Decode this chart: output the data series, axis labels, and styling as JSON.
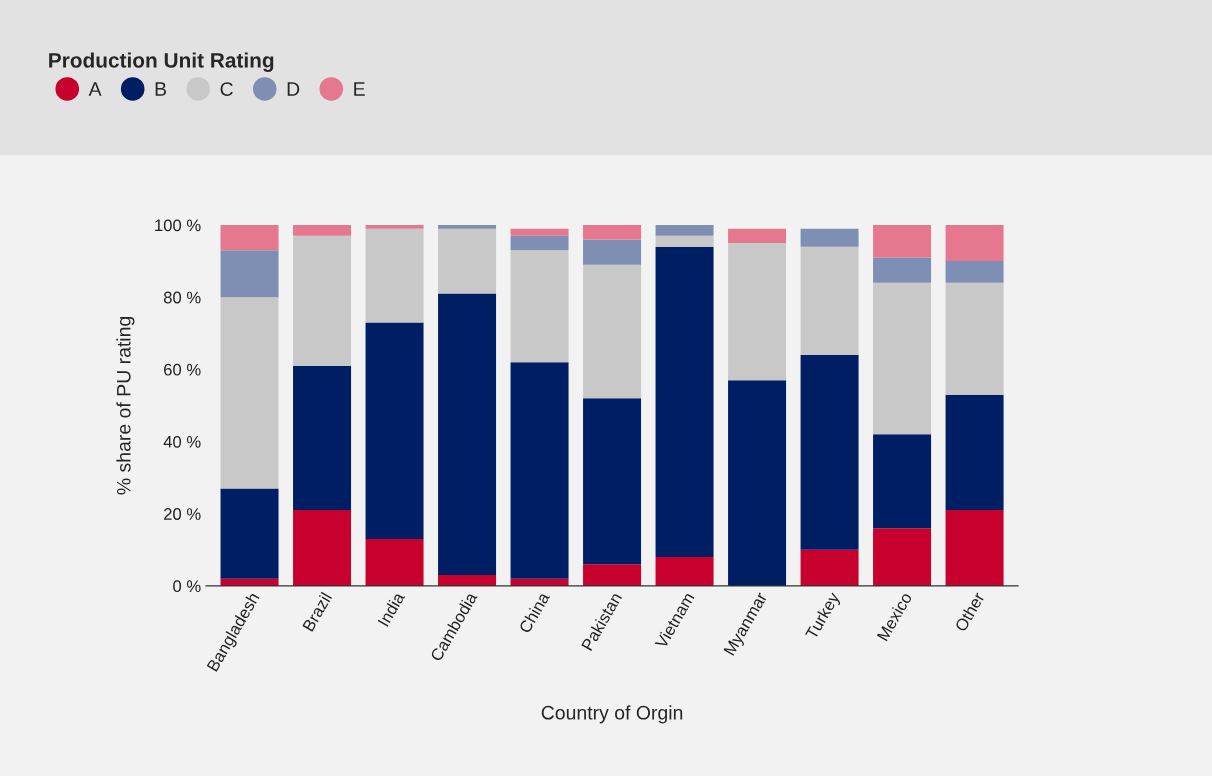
{
  "chart_data": {
    "type": "bar",
    "stacked": true,
    "legend_title": "Production Unit Rating",
    "legend": "top left",
    "xlabel": "Country of Orgin",
    "ylabel": "% share of PU rating",
    "categories": [
      "Bangladesh",
      "Brazil",
      "India",
      "Cambodia",
      "China",
      "Pakistan",
      "Vietnam",
      "Myanmar",
      "Turkey",
      "Mexico",
      "Other"
    ],
    "series": [
      {
        "name": "A",
        "color": "#c8002d",
        "values": [
          2,
          21,
          13,
          3,
          2,
          6,
          8,
          0,
          10,
          16,
          21
        ]
      },
      {
        "name": "B",
        "color": "#001e64",
        "values": [
          25,
          40,
          60,
          78,
          60,
          46,
          86,
          57,
          54,
          26,
          32
        ]
      },
      {
        "name": "C",
        "color": "#c8c8c8",
        "values": [
          53,
          36,
          26,
          18,
          31,
          37,
          3,
          38,
          30,
          42,
          31
        ]
      },
      {
        "name": "D",
        "color": "#7f8fb3",
        "values": [
          13,
          0,
          0,
          1,
          4,
          7,
          3,
          0,
          5,
          7,
          6
        ]
      },
      {
        "name": "E",
        "color": "#e5788f",
        "values": [
          7,
          3,
          1,
          0,
          2,
          4,
          0,
          4,
          0,
          9,
          10
        ]
      }
    ],
    "ylim": [
      0,
      100
    ],
    "yticks": [
      {
        "value": 0,
        "label": "0 %"
      },
      {
        "value": 20,
        "label": "20 %"
      },
      {
        "value": 40,
        "label": "40 %"
      },
      {
        "value": 60,
        "label": "60 %"
      },
      {
        "value": 80,
        "label": "80 %"
      },
      {
        "value": 100,
        "label": "100 %"
      }
    ],
    "grid": false
  }
}
